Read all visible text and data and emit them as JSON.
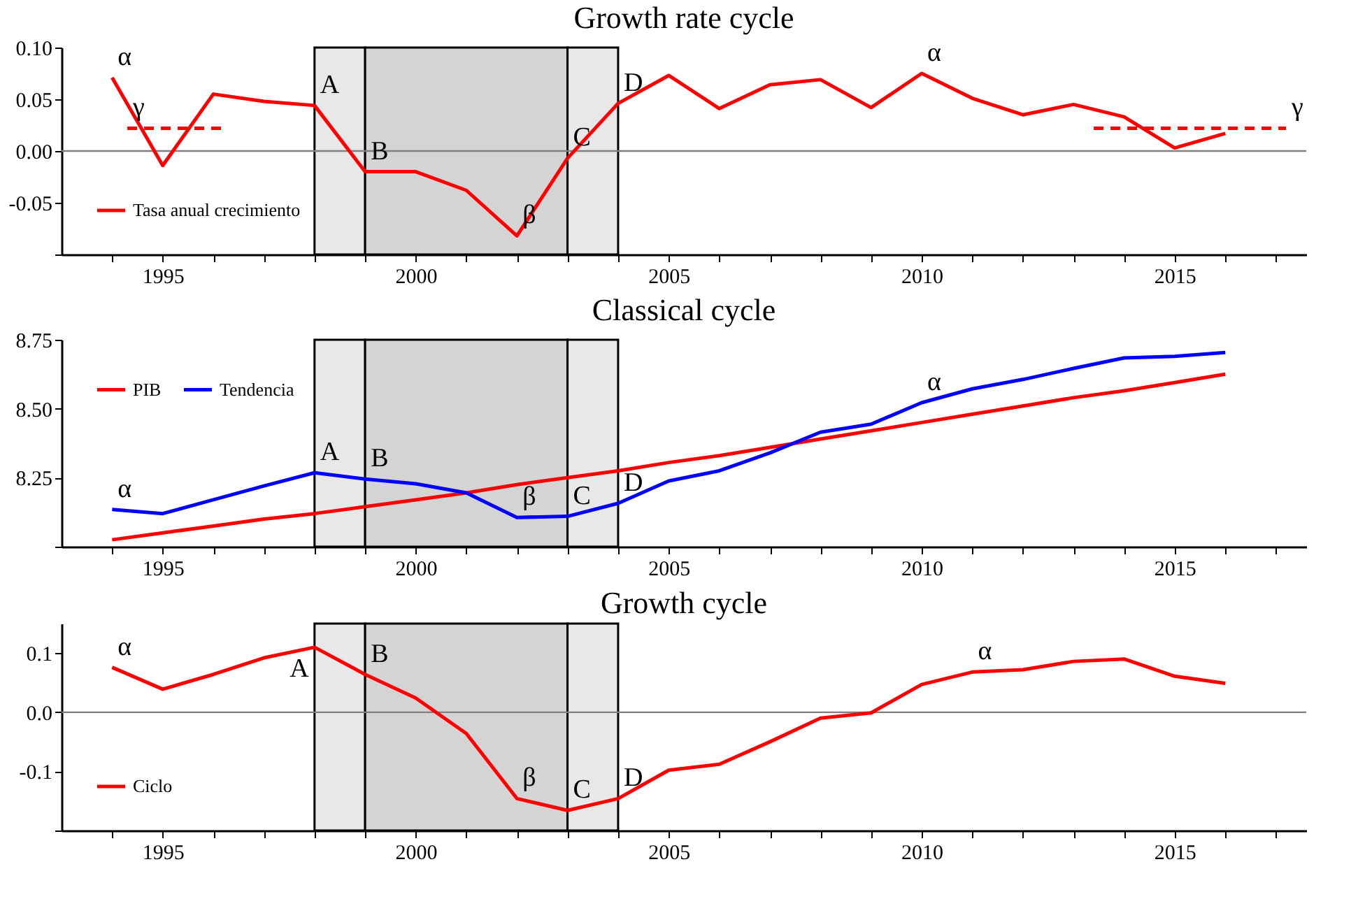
{
  "chart_data": [
    {
      "type": "line",
      "title": "Growth rate cycle",
      "x": [
        1994,
        1995,
        1996,
        1997,
        1998,
        1999,
        2000,
        2001,
        2002,
        2003,
        2004,
        2005,
        2006,
        2007,
        2008,
        2009,
        2010,
        2011,
        2012,
        2013,
        2014,
        2015,
        2016
      ],
      "series": [
        {
          "name": "Tasa anual crecimiento",
          "color": "#ff0000",
          "values": [
            0.071,
            -0.014,
            0.055,
            0.048,
            0.044,
            -0.02,
            -0.02,
            -0.038,
            -0.082,
            -0.007,
            0.046,
            0.073,
            0.041,
            0.064,
            0.069,
            0.042,
            0.075,
            0.051,
            0.035,
            0.045,
            0.033,
            0.003,
            0.017
          ]
        },
        {
          "color": "#ff0000",
          "line_style": "dashed",
          "x": [
            1994.3,
            1996.2
          ],
          "values": [
            0.022,
            0.022
          ]
        },
        {
          "color": "#ff0000",
          "line_style": "dashed",
          "x": [
            2013.4,
            2017.2
          ],
          "values": [
            0.022,
            0.022
          ]
        }
      ],
      "xlim": [
        1993,
        2017.6
      ],
      "xticks": [
        {
          "value": 1994,
          "label": null
        },
        1995,
        {
          "value": 1996,
          "label": null
        },
        {
          "value": 1997,
          "label": null
        },
        {
          "value": 1998,
          "label": null
        },
        {
          "value": 1999,
          "label": null
        },
        2000,
        {
          "value": 2001,
          "label": null
        },
        {
          "value": 2002,
          "label": null
        },
        {
          "value": 2003,
          "label": null
        },
        {
          "value": 2004,
          "label": null
        },
        2005,
        {
          "value": 2006,
          "label": null
        },
        {
          "value": 2007,
          "label": null
        },
        {
          "value": 2008,
          "label": null
        },
        {
          "value": 2009,
          "label": null
        },
        2010,
        {
          "value": 2011,
          "label": null
        },
        {
          "value": 2012,
          "label": null
        },
        {
          "value": 2013,
          "label": null
        },
        {
          "value": 2014,
          "label": null
        },
        2015,
        {
          "value": 2016,
          "label": null
        },
        {
          "value": 2017,
          "label": null
        }
      ],
      "ylim": [
        -0.1,
        0.1
      ],
      "yticks": [
        {
          "value": -0.1,
          "label": null
        },
        {
          "value": -0.05,
          "label": "-0.05"
        },
        {
          "value": 0,
          "label": "0.00"
        },
        {
          "value": 0.05,
          "label": "0.05"
        },
        {
          "value": 0.1,
          "label": "0.10"
        }
      ],
      "bands": [
        {
          "axis": "x",
          "from": 1998,
          "to": 1999,
          "color": "#e8e8e8"
        },
        {
          "axis": "x",
          "from": 1999,
          "to": 2003,
          "color": "#d4d4d4"
        },
        {
          "axis": "x",
          "from": 2003,
          "to": 2004,
          "color": "#e8e8e8"
        }
      ],
      "ref_lines": [
        {
          "axis": "y",
          "value": 0,
          "color": "#808080"
        }
      ],
      "annotations": [
        {
          "text": "α",
          "x": 1994,
          "y": 0.071
        },
        {
          "text": "A",
          "x": 1998,
          "y": 0.044
        },
        {
          "text": "B",
          "x": 1999,
          "y": -0.02
        },
        {
          "text": "β",
          "x": 2002,
          "y": -0.082
        },
        {
          "text": "C",
          "x": 2003,
          "y": -0.007
        },
        {
          "text": "D",
          "x": 2004,
          "y": 0.046
        },
        {
          "text": "α",
          "x": 2010,
          "y": 0.075
        },
        {
          "text": "γ",
          "x": 1994.3,
          "y": 0.022
        },
        {
          "text": "γ",
          "x": 2017.2,
          "y": 0.022
        }
      ],
      "legend": "bottom left"
    },
    {
      "type": "line",
      "title": "Classical cycle",
      "x": [
        1994,
        1995,
        1996,
        1997,
        1998,
        1999,
        2000,
        2001,
        2002,
        2003,
        2004,
        2005,
        2006,
        2007,
        2008,
        2009,
        2010,
        2011,
        2012,
        2013,
        2014,
        2015,
        2016
      ],
      "series": [
        {
          "name": "PIB",
          "color": "#ff0000",
          "values": [
            8.025,
            8.05,
            8.075,
            8.1,
            8.12,
            8.145,
            8.17,
            8.195,
            8.225,
            8.25,
            8.275,
            8.305,
            8.33,
            8.36,
            8.39,
            8.42,
            8.45,
            8.48,
            8.51,
            8.54,
            8.565,
            8.595,
            8.625
          ]
        },
        {
          "name": "Tendencia",
          "color": "#0000ff",
          "values": [
            8.135,
            8.12,
            8.17,
            8.22,
            8.268,
            8.245,
            8.228,
            8.195,
            8.106,
            8.11,
            8.157,
            8.238,
            8.275,
            8.34,
            8.415,
            8.444,
            8.522,
            8.572,
            8.606,
            8.646,
            8.684,
            8.69,
            8.704
          ]
        }
      ],
      "xlim": [
        1993,
        2017.6
      ],
      "xticks": [
        {
          "value": 1994,
          "label": null
        },
        1995,
        {
          "value": 1996,
          "label": null
        },
        {
          "value": 1997,
          "label": null
        },
        {
          "value": 1998,
          "label": null
        },
        {
          "value": 1999,
          "label": null
        },
        2000,
        {
          "value": 2001,
          "label": null
        },
        {
          "value": 2002,
          "label": null
        },
        {
          "value": 2003,
          "label": null
        },
        {
          "value": 2004,
          "label": null
        },
        2005,
        {
          "value": 2006,
          "label": null
        },
        {
          "value": 2007,
          "label": null
        },
        {
          "value": 2008,
          "label": null
        },
        {
          "value": 2009,
          "label": null
        },
        2010,
        {
          "value": 2011,
          "label": null
        },
        {
          "value": 2012,
          "label": null
        },
        {
          "value": 2013,
          "label": null
        },
        {
          "value": 2014,
          "label": null
        },
        2015,
        {
          "value": 2016,
          "label": null
        },
        {
          "value": 2017,
          "label": null
        }
      ],
      "ylim": [
        8.0,
        8.75
      ],
      "yticks": [
        {
          "value": 8.0,
          "label": null
        },
        8.25,
        {
          "value": 8.5,
          "label": "8.50"
        },
        8.75
      ],
      "bands": [
        {
          "axis": "x",
          "from": 1998,
          "to": 1999,
          "color": "#e8e8e8"
        },
        {
          "axis": "x",
          "from": 1999,
          "to": 2003,
          "color": "#d4d4d4"
        },
        {
          "axis": "x",
          "from": 2003,
          "to": 2004,
          "color": "#e8e8e8"
        }
      ],
      "annotations": [
        {
          "text": "α",
          "x": 1994,
          "y": 8.135
        },
        {
          "text": "A",
          "x": 1998,
          "y": 8.268
        },
        {
          "text": "B",
          "x": 1999,
          "y": 8.245
        },
        {
          "text": "β",
          "x": 2002,
          "y": 8.106
        },
        {
          "text": "C",
          "x": 2003,
          "y": 8.11
        },
        {
          "text": "D",
          "x": 2004,
          "y": 8.157
        },
        {
          "text": "α",
          "x": 2010,
          "y": 8.522
        }
      ],
      "legend": "top left"
    },
    {
      "type": "line",
      "title": "Growth cycle",
      "x": [
        1994,
        1995,
        1996,
        1997,
        1998,
        1999,
        2000,
        2001,
        2002,
        2003,
        2004,
        2005,
        2006,
        2007,
        2008,
        2009,
        2010,
        2011,
        2012,
        2013,
        2014,
        2015,
        2016
      ],
      "series": [
        {
          "name": "Ciclo",
          "color": "#ff0000",
          "values": [
            0.076,
            0.039,
            0.064,
            0.092,
            0.11,
            0.064,
            0.024,
            -0.036,
            -0.146,
            -0.166,
            -0.146,
            -0.098,
            -0.088,
            -0.05,
            -0.01,
            -0.001,
            0.047,
            0.068,
            0.072,
            0.086,
            0.09,
            0.061,
            0.049
          ]
        }
      ],
      "xlim": [
        1993,
        2017.6
      ],
      "xticks": [
        {
          "value": 1994,
          "label": null
        },
        1995,
        {
          "value": 1996,
          "label": null
        },
        {
          "value": 1997,
          "label": null
        },
        {
          "value": 1998,
          "label": null
        },
        {
          "value": 1999,
          "label": null
        },
        2000,
        {
          "value": 2001,
          "label": null
        },
        {
          "value": 2002,
          "label": null
        },
        {
          "value": 2003,
          "label": null
        },
        {
          "value": 2004,
          "label": null
        },
        2005,
        {
          "value": 2006,
          "label": null
        },
        {
          "value": 2007,
          "label": null
        },
        {
          "value": 2008,
          "label": null
        },
        {
          "value": 2009,
          "label": null
        },
        2010,
        {
          "value": 2011,
          "label": null
        },
        {
          "value": 2012,
          "label": null
        },
        {
          "value": 2013,
          "label": null
        },
        {
          "value": 2014,
          "label": null
        },
        2015,
        {
          "value": 2016,
          "label": null
        },
        {
          "value": 2017,
          "label": null
        }
      ],
      "ylim": [
        -0.2,
        0.15
      ],
      "yticks": [
        {
          "value": -0.2,
          "label": null
        },
        {
          "value": -0.1,
          "label": "-0.1"
        },
        {
          "value": 0,
          "label": "0.0"
        },
        {
          "value": 0.1,
          "label": "0.1"
        }
      ],
      "bands": [
        {
          "axis": "x",
          "from": 1998,
          "to": 1999,
          "color": "#e8e8e8"
        },
        {
          "axis": "x",
          "from": 1999,
          "to": 2003,
          "color": "#d4d4d4"
        },
        {
          "axis": "x",
          "from": 2003,
          "to": 2004,
          "color": "#e8e8e8"
        }
      ],
      "ref_lines": [
        {
          "axis": "y",
          "value": 0,
          "color": "#808080"
        }
      ],
      "annotations": [
        {
          "text": "α",
          "x": 1994,
          "y": 0.076
        },
        {
          "text": "A",
          "x": 1998,
          "y": 0.11
        },
        {
          "text": "B",
          "x": 1999,
          "y": 0.064
        },
        {
          "text": "β",
          "x": 2002,
          "y": -0.146
        },
        {
          "text": "C",
          "x": 2003,
          "y": -0.166
        },
        {
          "text": "D",
          "x": 2004,
          "y": -0.146
        },
        {
          "text": "α",
          "x": 2011,
          "y": 0.068
        }
      ],
      "legend": "bottom left"
    }
  ]
}
